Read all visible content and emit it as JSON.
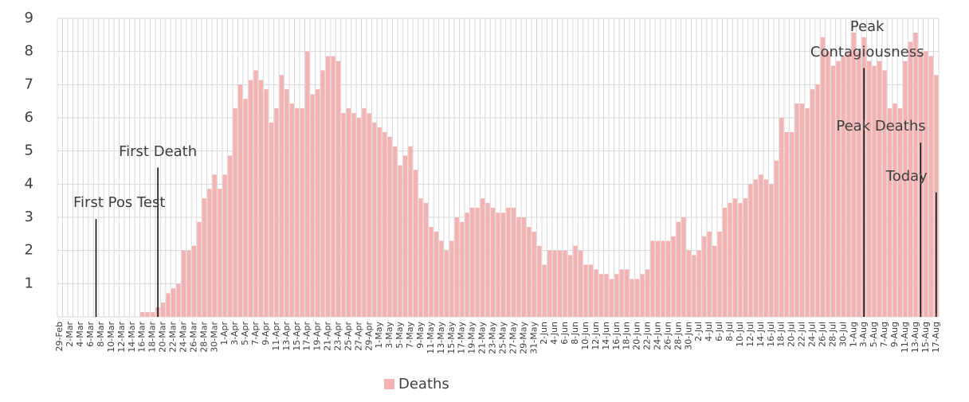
{
  "chart_data": {
    "type": "bar",
    "categories": [
      "29-Feb",
      null,
      "2-Mar",
      null,
      "4-Mar",
      null,
      "6-Mar",
      null,
      "8-Mar",
      null,
      "10-Mar",
      null,
      "12-Mar",
      null,
      "14-Mar",
      null,
      "16-Mar",
      null,
      "18-Mar",
      null,
      "20-Mar",
      null,
      "22-Mar",
      null,
      "24-Mar",
      null,
      "26-Mar",
      null,
      "28-Mar",
      null,
      "30-Mar",
      null,
      "1-Apr",
      null,
      "3-Apr",
      null,
      "5-Apr",
      null,
      "7-Apr",
      null,
      "9-Apr",
      null,
      "11-Apr",
      null,
      "13-Apr",
      null,
      "15-Apr",
      null,
      "17-Apr",
      null,
      "19-Apr",
      null,
      "21-Apr",
      null,
      "23-Apr",
      null,
      "25-Apr",
      null,
      "27-Apr",
      null,
      "29-Apr",
      null,
      "1-May",
      null,
      "3-May",
      null,
      "5-May",
      null,
      "7-May",
      null,
      "9-May",
      null,
      "11-May",
      null,
      "13-May",
      null,
      "15-May",
      null,
      "17-May",
      null,
      "19-May",
      null,
      "21-May",
      null,
      "23-May",
      null,
      "25-May",
      null,
      "27-May",
      null,
      "29-May",
      null,
      "31-May",
      null,
      "2-Jun",
      null,
      "4-Jun",
      null,
      "6-Jun",
      null,
      "8-Jun",
      null,
      "10-Jun",
      null,
      "12-Jun",
      null,
      "14-Jun",
      null,
      "16-Jun",
      null,
      "18-Jun",
      null,
      "20-Jun",
      null,
      "22-Jun",
      null,
      "24-Jun",
      null,
      "26-Jun",
      null,
      "28-Jun",
      null,
      "30-Jun",
      null,
      "2-Jul",
      null,
      "4-Jul",
      null,
      "6-Jul",
      null,
      "8-Jul",
      null,
      "10-Jul",
      null,
      "12-Jul",
      null,
      "14-Jul",
      null,
      "16-Jul",
      null,
      "18-Jul",
      null,
      "20-Jul",
      null,
      "22-Jul",
      null,
      "24-Jul",
      null,
      "26-Jul",
      null,
      "28-Jul",
      null,
      "30-Jul",
      null,
      "1-Aug",
      null,
      "3-Aug",
      null,
      "5-Aug",
      null,
      "7-Aug",
      null,
      "9-Aug",
      null,
      "11-Aug",
      null,
      "13-Aug",
      null,
      "15-Aug",
      null,
      "17-Aug"
    ],
    "series": [
      {
        "name": "Deaths",
        "color": "#f4b2b2",
        "values": [
          0,
          0,
          0,
          0,
          0,
          0,
          0,
          0,
          0,
          0,
          0,
          0,
          0,
          0,
          0,
          0,
          0.14,
          0.14,
          0.14,
          0.29,
          0.43,
          0.71,
          0.86,
          1.0,
          2.0,
          2.0,
          2.14,
          2.86,
          3.57,
          3.86,
          4.29,
          3.86,
          4.29,
          4.86,
          6.29,
          7.0,
          6.57,
          7.14,
          7.43,
          7.14,
          6.86,
          5.86,
          6.29,
          7.29,
          6.86,
          6.43,
          6.29,
          6.29,
          8.0,
          6.71,
          6.86,
          7.43,
          7.86,
          7.86,
          7.71,
          6.14,
          6.29,
          6.14,
          6.0,
          6.29,
          6.14,
          5.86,
          5.71,
          5.57,
          5.43,
          5.14,
          4.57,
          4.86,
          5.14,
          4.43,
          3.57,
          3.43,
          2.71,
          2.57,
          2.29,
          2.0,
          2.29,
          3.0,
          2.86,
          3.14,
          3.29,
          3.29,
          3.57,
          3.43,
          3.29,
          3.14,
          3.14,
          3.29,
          3.29,
          3.0,
          3.0,
          2.71,
          2.57,
          2.14,
          1.57,
          2.0,
          2.0,
          2.0,
          2.0,
          1.86,
          2.14,
          2.0,
          1.57,
          1.57,
          1.43,
          1.29,
          1.29,
          1.14,
          1.29,
          1.43,
          1.43,
          1.14,
          1.14,
          1.29,
          1.43,
          2.29,
          2.29,
          2.29,
          2.29,
          2.43,
          2.86,
          3.0,
          2.0,
          1.86,
          2.0,
          2.43,
          2.57,
          2.14,
          2.57,
          3.29,
          3.43,
          3.57,
          3.43,
          3.57,
          4.0,
          4.14,
          4.29,
          4.14,
          4.0,
          4.71,
          6.0,
          5.57,
          5.57,
          6.43,
          6.43,
          6.29,
          6.86,
          7.0,
          8.43,
          8.0,
          7.57,
          7.71,
          7.86,
          8.0,
          8.57,
          8.0,
          8.43,
          7.71,
          7.57,
          7.71,
          7.43,
          6.29,
          6.43,
          6.29,
          7.71,
          8.29,
          8.57,
          8.0,
          8.0,
          7.86,
          7.29
        ]
      }
    ],
    "ylim": [
      0,
      9
    ],
    "yticks": [
      1,
      2,
      3,
      4,
      5,
      6,
      7,
      8,
      9
    ],
    "grid": true,
    "annotations": [
      {
        "label": "First Pos Test",
        "x": 7,
        "y": 2.95
      },
      {
        "label": "First Death",
        "x": 19,
        "y": 4.5
      },
      {
        "label": "Peak Contagiousness",
        "x": 156,
        "y": 7.5
      },
      {
        "label": "Peak Deaths",
        "x": 167,
        "y": 5.25
      },
      {
        "label": "Today",
        "x": 170,
        "y": 3.75
      }
    ]
  }
}
